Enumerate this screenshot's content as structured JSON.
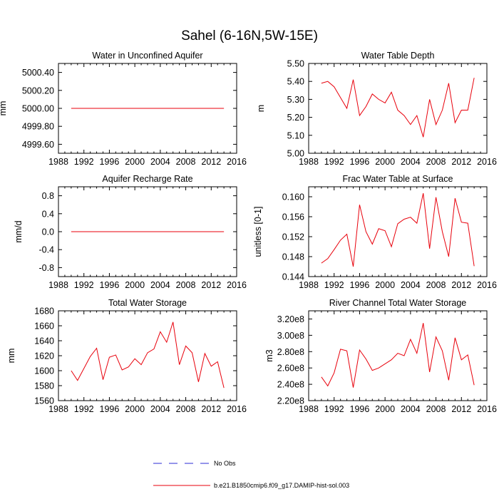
{
  "figure": {
    "title": "Sahel (6-16N,5W-15E)",
    "line_color": "#e8000b",
    "obs_color": "#2b2bd6"
  },
  "legend": {
    "obs_label": "No Obs",
    "model_label": "b.e21.B1850cmip6.f09_g17.DAMIP-hist-sol.003"
  },
  "chart_data": [
    {
      "type": "line",
      "title": "Water in Unconfined Aquifer",
      "ylabel": "mm",
      "xlim": [
        1988,
        2016
      ],
      "xticks": [
        "1988",
        "1992",
        "1996",
        "2000",
        "2004",
        "2008",
        "2012",
        "2016"
      ],
      "ylim": [
        4999.5,
        5000.5
      ],
      "yticks": [
        4999.6,
        4999.8,
        5000.0,
        5000.2,
        5000.4
      ],
      "ytick_labels": [
        "4999.60",
        "4999.80",
        "5000.00",
        "5000.20",
        "5000.40"
      ],
      "x": [
        1990,
        1991,
        1992,
        1993,
        1994,
        1995,
        1996,
        1997,
        1998,
        1999,
        2000,
        2001,
        2002,
        2003,
        2004,
        2005,
        2006,
        2007,
        2008,
        2009,
        2010,
        2011,
        2012,
        2013,
        2014
      ],
      "series": [
        {
          "values": [
            5000,
            5000,
            5000,
            5000,
            5000,
            5000,
            5000,
            5000,
            5000,
            5000,
            5000,
            5000,
            5000,
            5000,
            5000,
            5000,
            5000,
            5000,
            5000,
            5000,
            5000,
            5000,
            5000,
            5000,
            5000
          ]
        }
      ]
    },
    {
      "type": "line",
      "title": "Water Table Depth",
      "ylabel": "m",
      "xlim": [
        1988,
        2016
      ],
      "xticks": [
        "1988",
        "1992",
        "1996",
        "2000",
        "2004",
        "2008",
        "2012",
        "2016"
      ],
      "ylim": [
        5.0,
        5.5
      ],
      "yticks": [
        5.0,
        5.1,
        5.2,
        5.3,
        5.4,
        5.5
      ],
      "ytick_labels": [
        "5.00",
        "5.10",
        "5.20",
        "5.30",
        "5.40",
        "5.50"
      ],
      "x": [
        1990,
        1991,
        1992,
        1993,
        1994,
        1995,
        1996,
        1997,
        1998,
        1999,
        2000,
        2001,
        2002,
        2003,
        2004,
        2005,
        2006,
        2007,
        2008,
        2009,
        2010,
        2011,
        2012,
        2013,
        2014
      ],
      "series": [
        {
          "values": [
            5.39,
            5.4,
            5.37,
            5.31,
            5.25,
            5.41,
            5.21,
            5.26,
            5.33,
            5.3,
            5.28,
            5.34,
            5.24,
            5.21,
            5.16,
            5.21,
            5.09,
            5.3,
            5.16,
            5.24,
            5.39,
            5.17,
            5.24,
            5.24,
            5.42
          ]
        }
      ]
    },
    {
      "type": "line",
      "title": "Aquifer Recharge Rate",
      "ylabel": "mm/d",
      "xlim": [
        1988,
        2016
      ],
      "xticks": [
        "1988",
        "1992",
        "1996",
        "2000",
        "2004",
        "2008",
        "2012",
        "2016"
      ],
      "ylim": [
        -1.0,
        1.0
      ],
      "yticks": [
        -0.8,
        -0.4,
        0.0,
        0.4,
        0.8
      ],
      "ytick_labels": [
        "-0.8",
        "-0.4",
        "0.0",
        "0.4",
        "0.8"
      ],
      "x": [
        1990,
        1991,
        1992,
        1993,
        1994,
        1995,
        1996,
        1997,
        1998,
        1999,
        2000,
        2001,
        2002,
        2003,
        2004,
        2005,
        2006,
        2007,
        2008,
        2009,
        2010,
        2011,
        2012,
        2013,
        2014
      ],
      "series": [
        {
          "values": [
            0,
            0,
            0,
            0,
            0,
            0,
            0,
            0,
            0,
            0,
            0,
            0,
            0,
            0,
            0,
            0,
            0,
            0,
            0,
            0,
            0,
            0,
            0,
            0,
            0
          ]
        }
      ]
    },
    {
      "type": "line",
      "title": "Frac Water Table at Surface",
      "ylabel": "unitless [0-1]",
      "xlim": [
        1988,
        2016
      ],
      "xticks": [
        "1988",
        "1992",
        "1996",
        "2000",
        "2004",
        "2008",
        "2012",
        "2016"
      ],
      "ylim": [
        0.144,
        0.162
      ],
      "yticks": [
        0.144,
        0.148,
        0.152,
        0.156,
        0.16
      ],
      "ytick_labels": [
        "0.144",
        "0.148",
        "0.152",
        "0.156",
        "0.160"
      ],
      "x": [
        1990,
        1991,
        1992,
        1993,
        1994,
        1995,
        1996,
        1997,
        1998,
        1999,
        2000,
        2001,
        2002,
        2003,
        2004,
        2005,
        2006,
        2007,
        2008,
        2009,
        2010,
        2011,
        2012,
        2013,
        2014
      ],
      "series": [
        {
          "values": [
            0.1467,
            0.1476,
            0.1494,
            0.1513,
            0.1525,
            0.146,
            0.1584,
            0.153,
            0.1505,
            0.1536,
            0.1532,
            0.15,
            0.1546,
            0.1555,
            0.1559,
            0.1547,
            0.1607,
            0.1496,
            0.1599,
            0.153,
            0.148,
            0.1597,
            0.1549,
            0.1547,
            0.1461
          ]
        }
      ]
    },
    {
      "type": "line",
      "title": "Total Water Storage",
      "ylabel": "mm",
      "xlim": [
        1988,
        2016
      ],
      "xticks": [
        "1988",
        "1992",
        "1996",
        "2000",
        "2004",
        "2008",
        "2012",
        "2016"
      ],
      "ylim": [
        1560,
        1680
      ],
      "yticks": [
        1560,
        1580,
        1600,
        1620,
        1640,
        1660,
        1680
      ],
      "ytick_labels": [
        "1560",
        "1580",
        "1600",
        "1620",
        "1640",
        "1660",
        "1680"
      ],
      "x": [
        1990,
        1991,
        1992,
        1993,
        1994,
        1995,
        1996,
        1997,
        1998,
        1999,
        2000,
        2001,
        2002,
        2003,
        2004,
        2005,
        2006,
        2007,
        2008,
        2009,
        2010,
        2011,
        2012,
        2013,
        2014
      ],
      "series": [
        {
          "values": [
            1600,
            1587,
            1603,
            1619,
            1630,
            1588,
            1618,
            1621,
            1601,
            1605,
            1616,
            1608,
            1624,
            1629,
            1652,
            1638,
            1665,
            1608,
            1633,
            1624,
            1585,
            1623,
            1606,
            1612,
            1577
          ]
        }
      ]
    },
    {
      "type": "line",
      "title": "River Channel Total Water Storage",
      "ylabel": "m3",
      "xlim": [
        1988,
        2016
      ],
      "xticks": [
        "1988",
        "1992",
        "1996",
        "2000",
        "2004",
        "2008",
        "2012",
        "2016"
      ],
      "ylim": [
        220000000,
        330000000
      ],
      "yticks": [
        220000000,
        240000000,
        260000000,
        280000000,
        300000000,
        320000000
      ],
      "ytick_labels": [
        "2.20e8",
        "2.40e8",
        "2.60e8",
        "2.80e8",
        "3.00e8",
        "3.20e8"
      ],
      "x": [
        1990,
        1991,
        1992,
        1993,
        1994,
        1995,
        1996,
        1997,
        1998,
        1999,
        2000,
        2001,
        2002,
        2003,
        2004,
        2005,
        2006,
        2007,
        2008,
        2009,
        2010,
        2011,
        2012,
        2013,
        2014
      ],
      "series": [
        {
          "values": [
            249000000,
            238000000,
            254000000,
            283000000,
            281000000,
            236000000,
            282000000,
            271000000,
            257000000,
            260000000,
            265000000,
            270000000,
            278000000,
            275000000,
            295000000,
            278000000,
            315000000,
            255000000,
            298000000,
            281000000,
            245000000,
            297000000,
            270000000,
            276000000,
            239000000
          ]
        }
      ]
    }
  ]
}
